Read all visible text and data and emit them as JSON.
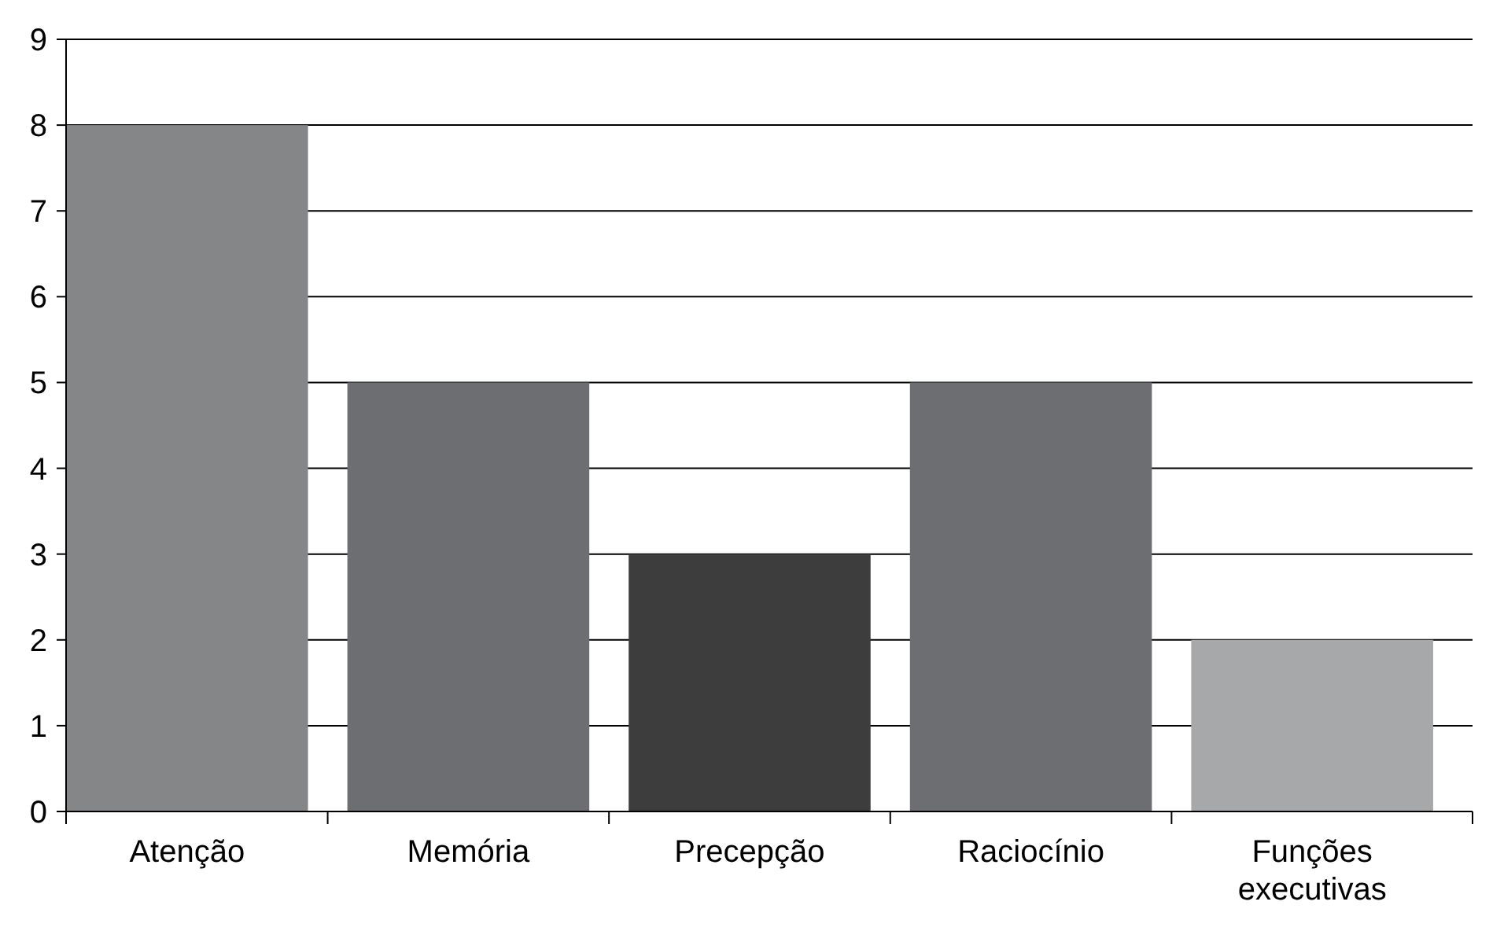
{
  "chart_data": {
    "type": "bar",
    "categories": [
      "Atenção",
      "Memória",
      "Precepção",
      "Raciocínio",
      "Funções executivas"
    ],
    "values": [
      8,
      5,
      3,
      5,
      2
    ],
    "colors": [
      "#858688",
      "#6d6e71",
      "#3d3d3d",
      "#6d6e71",
      "#a7a8aa"
    ],
    "ylim": [
      0,
      9
    ],
    "yticks": [
      0,
      1,
      2,
      3,
      4,
      5,
      6,
      7,
      8,
      9
    ],
    "grid": "y"
  }
}
